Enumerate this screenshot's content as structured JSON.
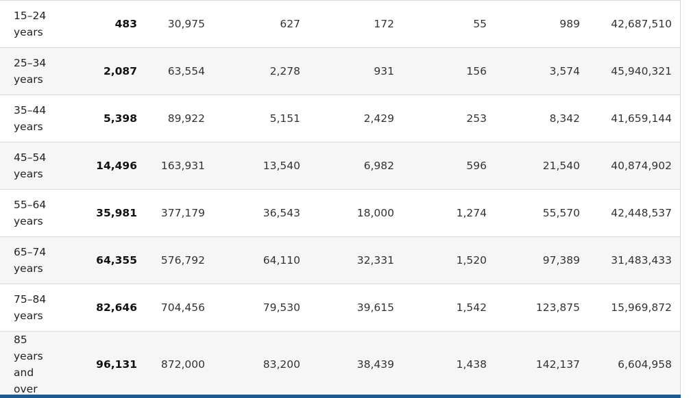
{
  "table": {
    "rows": [
      {
        "age": "15–24 years",
        "cells": [
          "483",
          "30,975",
          "627",
          "172",
          "55",
          "989",
          "42,687,510"
        ]
      },
      {
        "age": "25–34 years",
        "cells": [
          "2,087",
          "63,554",
          "2,278",
          "931",
          "156",
          "3,574",
          "45,940,321"
        ]
      },
      {
        "age": "35–44 years",
        "cells": [
          "5,398",
          "89,922",
          "5,151",
          "2,429",
          "253",
          "8,342",
          "41,659,144"
        ]
      },
      {
        "age": "45–54 years",
        "cells": [
          "14,496",
          "163,931",
          "13,540",
          "6,982",
          "596",
          "21,540",
          "40,874,902"
        ]
      },
      {
        "age": "55–64 years",
        "cells": [
          "35,981",
          "377,179",
          "36,543",
          "18,000",
          "1,274",
          "55,570",
          "42,448,537"
        ]
      },
      {
        "age": "65–74 years",
        "cells": [
          "64,355",
          "576,792",
          "64,110",
          "32,331",
          "1,520",
          "97,389",
          "31,483,433"
        ]
      },
      {
        "age": "75–84 years",
        "cells": [
          "82,646",
          "704,456",
          "79,530",
          "39,615",
          "1,542",
          "123,875",
          "15,969,872"
        ]
      },
      {
        "age": "85 years and over",
        "cells": [
          "96,131",
          "872,000",
          "83,200",
          "38,439",
          "1,438",
          "142,137",
          "6,604,958"
        ]
      }
    ]
  },
  "colors": {
    "bottom_bar": "#1d5a8f",
    "alt_row": "#f6f6f6",
    "row_border": "#dcdcdc"
  }
}
